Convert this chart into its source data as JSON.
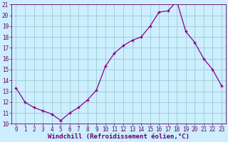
{
  "hours": [
    0,
    1,
    2,
    3,
    4,
    5,
    6,
    7,
    8,
    9,
    10,
    11,
    12,
    13,
    14,
    15,
    16,
    17,
    18,
    19,
    20,
    21,
    22,
    23
  ],
  "values": [
    13.3,
    12.0,
    11.5,
    11.2,
    10.9,
    10.3,
    11.0,
    11.5,
    12.2,
    13.1,
    15.3,
    16.5,
    17.2,
    17.7,
    18.0,
    19.0,
    20.3,
    20.4,
    21.3,
    18.5,
    17.5,
    16.0,
    15.0,
    13.5
  ],
  "line_color": "#880088",
  "marker": "+",
  "bg_color": "#cceeff",
  "grid_color": "#99cccc",
  "xlabel": "Windchill (Refroidissement éolien,°C)",
  "xlabel_fontsize": 6.5,
  "ylim": [
    10,
    21
  ],
  "yticks": [
    10,
    11,
    12,
    13,
    14,
    15,
    16,
    17,
    18,
    19,
    20,
    21
  ],
  "xticks": [
    0,
    1,
    2,
    3,
    4,
    5,
    6,
    7,
    8,
    9,
    10,
    11,
    12,
    13,
    14,
    15,
    16,
    17,
    18,
    19,
    20,
    21,
    22,
    23
  ],
  "tick_fontsize": 5.5,
  "axis_color": "#660066",
  "title_color": "#660066",
  "markersize": 3,
  "linewidth": 0.9
}
